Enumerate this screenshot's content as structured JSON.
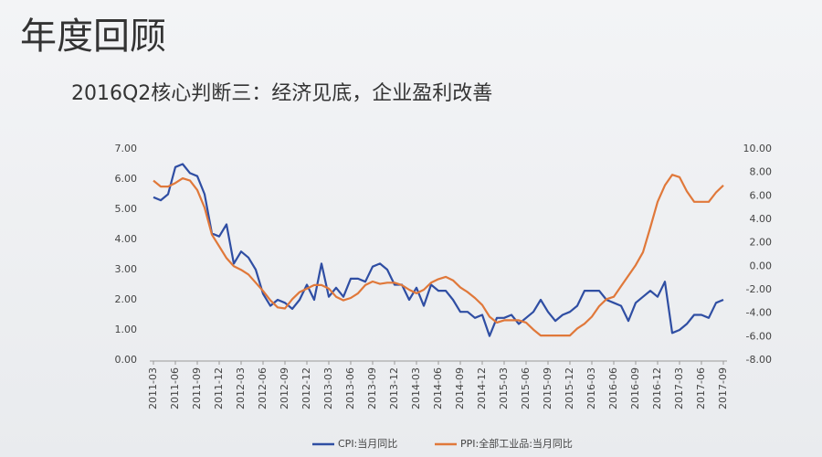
{
  "chart_data": {
    "type": "line",
    "title": "年度回顾",
    "subtitle": "2016Q2核心判断三：经济见底，企业盈利改善",
    "categories": [
      "2011-03",
      null,
      null,
      "2011-06",
      null,
      null,
      "2011-09",
      null,
      null,
      "2011-12",
      null,
      null,
      "2012-03",
      null,
      null,
      "2012-06",
      null,
      null,
      "2012-09",
      null,
      null,
      "2012-12",
      null,
      null,
      "2013-03",
      null,
      null,
      "2013-06",
      null,
      null,
      "2013-09",
      null,
      null,
      "2013-12",
      null,
      null,
      "2014-03",
      null,
      null,
      "2014-06",
      null,
      null,
      "2014-09",
      null,
      null,
      "2014-12",
      null,
      null,
      "2015-03",
      null,
      null,
      "2015-06",
      null,
      null,
      "2015-09",
      null,
      null,
      "2015-12",
      null,
      null,
      "2016-03",
      null,
      null,
      "2016-06",
      null,
      null,
      "2016-09",
      null,
      null,
      "2016-12",
      null,
      null,
      "2017-03",
      null,
      null,
      "2017-06",
      null,
      null,
      "2017-09"
    ],
    "series": [
      {
        "name": "CPI:当月同比",
        "color": "#2f4ea3",
        "axis": "y",
        "values": [
          5.4,
          5.3,
          5.5,
          6.4,
          6.5,
          6.2,
          6.1,
          5.5,
          4.2,
          4.1,
          4.5,
          3.2,
          3.6,
          3.4,
          3.0,
          2.2,
          1.8,
          2.0,
          1.9,
          1.7,
          2.0,
          2.5,
          2.0,
          3.2,
          2.1,
          2.4,
          2.1,
          2.7,
          2.7,
          2.6,
          3.1,
          3.2,
          3.0,
          2.5,
          2.5,
          2.0,
          2.4,
          1.8,
          2.5,
          2.3,
          2.3,
          2.0,
          1.6,
          1.6,
          1.4,
          1.5,
          0.8,
          1.4,
          1.4,
          1.5,
          1.2,
          1.4,
          1.6,
          2.0,
          1.6,
          1.3,
          1.5,
          1.6,
          1.8,
          2.3,
          2.3,
          2.3,
          2.0,
          1.9,
          1.8,
          1.3,
          1.9,
          2.1,
          2.3,
          2.1,
          2.6,
          0.9,
          1.0,
          1.2,
          1.5,
          1.5,
          1.4,
          1.9,
          2.0
        ]
      },
      {
        "name": "PPI:全部工业品:当月同比",
        "color": "#e0783a",
        "axis": "y2",
        "values": [
          7.3,
          6.8,
          6.8,
          7.1,
          7.5,
          7.3,
          6.5,
          5.0,
          2.7,
          1.7,
          0.7,
          0.0,
          -0.3,
          -0.7,
          -1.4,
          -2.1,
          -2.9,
          -3.5,
          -3.6,
          -2.8,
          -2.2,
          -1.9,
          -1.6,
          -1.6,
          -1.9,
          -2.6,
          -2.9,
          -2.7,
          -2.3,
          -1.6,
          -1.3,
          -1.5,
          -1.4,
          -1.4,
          -1.6,
          -2.0,
          -2.3,
          -2.0,
          -1.4,
          -1.1,
          -0.9,
          -1.2,
          -1.8,
          -2.2,
          -2.7,
          -3.3,
          -4.3,
          -4.8,
          -4.6,
          -4.6,
          -4.6,
          -4.8,
          -5.4,
          -5.9,
          -5.9,
          -5.9,
          -5.9,
          -5.9,
          -5.3,
          -4.9,
          -4.3,
          -3.4,
          -2.8,
          -2.6,
          -1.7,
          -0.8,
          0.1,
          1.2,
          3.3,
          5.5,
          6.9,
          7.8,
          7.6,
          6.4,
          5.5,
          5.5,
          5.5,
          6.3,
          6.9
        ]
      }
    ],
    "ylim": [
      0,
      7
    ],
    "yticks": [
      {
        "value": 0,
        "label": "0.00"
      },
      {
        "value": 1,
        "label": "1.00"
      },
      {
        "value": 2,
        "label": "2.00"
      },
      {
        "value": 3,
        "label": "3.00"
      },
      {
        "value": 4,
        "label": "4.00"
      },
      {
        "value": 5,
        "label": "5.00"
      },
      {
        "value": 6,
        "label": "6.00"
      },
      {
        "value": 7,
        "label": "7.00"
      }
    ],
    "y2lim": [
      -8,
      10
    ],
    "y2ticks": [
      {
        "value": -8,
        "label": "-8.00"
      },
      {
        "value": -6,
        "label": "-6.00"
      },
      {
        "value": -4,
        "label": "-4.00"
      },
      {
        "value": -2,
        "label": "-2.00"
      },
      {
        "value": 0,
        "label": "0.00"
      },
      {
        "value": 2,
        "label": "2.00"
      },
      {
        "value": 4,
        "label": "4.00"
      },
      {
        "value": 6,
        "label": "6.00"
      },
      {
        "value": 8,
        "label": "8.00"
      },
      {
        "value": 10,
        "label": "10.00"
      }
    ],
    "grid": false,
    "legend": "bottom"
  }
}
